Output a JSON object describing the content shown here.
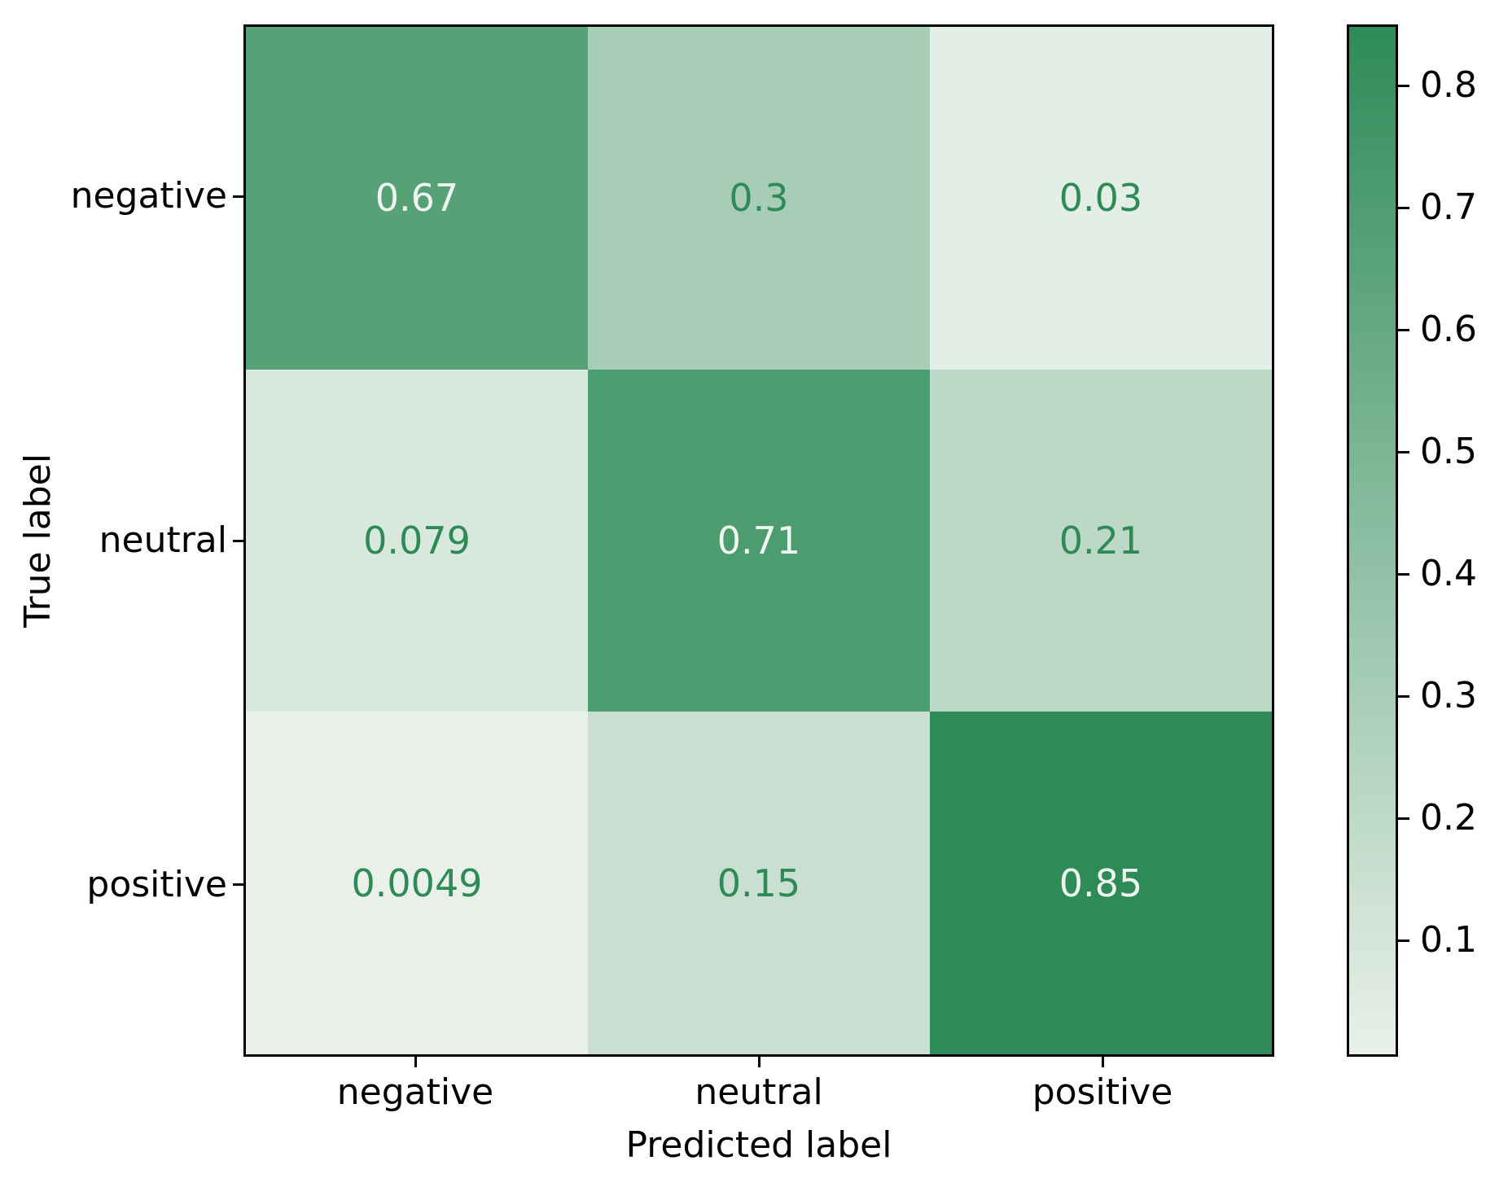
{
  "chart_data": {
    "type": "heatmap",
    "title": "",
    "xlabel": "Predicted label",
    "ylabel": "True label",
    "x_tick_labels": [
      "negative",
      "neutral",
      "positive"
    ],
    "y_tick_labels": [
      "negative",
      "neutral",
      "positive"
    ],
    "matrix": [
      [
        0.67,
        0.3,
        0.03
      ],
      [
        0.079,
        0.71,
        0.21
      ],
      [
        0.0049,
        0.15,
        0.85
      ]
    ],
    "cell_labels": [
      [
        "0.67",
        "0.3",
        "0.03"
      ],
      [
        "0.079",
        "0.71",
        "0.21"
      ],
      [
        "0.0049",
        "0.15",
        "0.85"
      ]
    ],
    "vmin": 0.0049,
    "vmax": 0.85,
    "grid": false,
    "legend_position": "colorbar-right",
    "colorbar": {
      "tick_labels": [
        "0.1",
        "0.2",
        "0.3",
        "0.4",
        "0.5",
        "0.6",
        "0.7",
        "0.8"
      ],
      "tick_values": [
        0.1,
        0.2,
        0.3,
        0.4,
        0.5,
        0.6,
        0.7,
        0.8
      ]
    },
    "colors": {
      "cmap_low": "#e9f1ea",
      "cmap_high": "#2e8b57",
      "cell_text_on_dark": "#eef4ef",
      "cell_text_on_light": "#2e8b57",
      "axis_edge": "#000000",
      "background": "#ffffff"
    }
  }
}
